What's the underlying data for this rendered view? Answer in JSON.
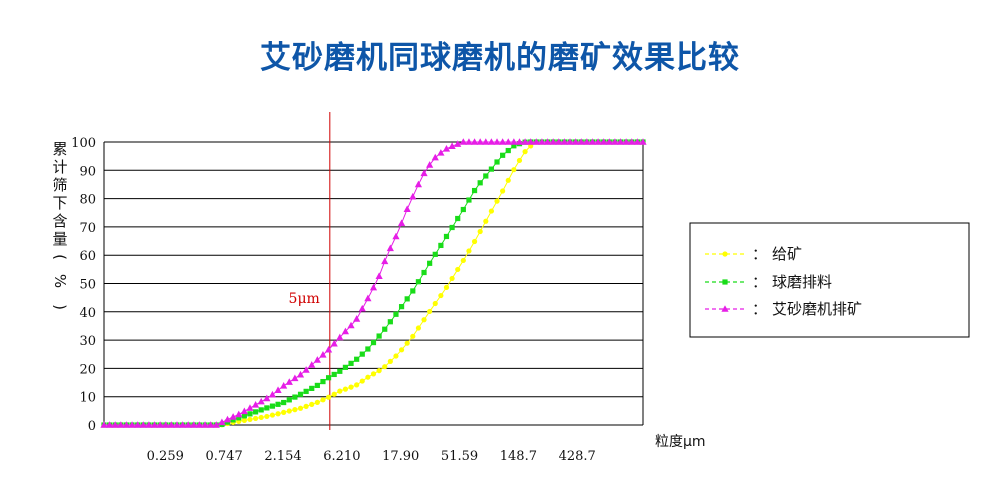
{
  "title": "艾砂磨机同球磨机的磨矿效果比较",
  "chart_data": {
    "type": "line",
    "title": "艾砂磨机同球磨机的磨矿效果比较",
    "ylabel_chars": [
      "累",
      "计",
      "筛",
      "下",
      "含",
      "量",
      "(",
      "%",
      ")"
    ],
    "xlabel": "粒度μm",
    "ylim": [
      0,
      100
    ],
    "yticks": [
      0,
      10,
      20,
      30,
      40,
      50,
      60,
      70,
      80,
      90,
      100
    ],
    "xlim": [
      0.086,
      1400
    ],
    "xscale": "log",
    "xtick_labels": [
      "0.259",
      "0.747",
      "2.154",
      "6.210",
      "17.90",
      "51.59",
      "148.7",
      "428.7"
    ],
    "xtick_values": [
      0.259,
      0.747,
      2.154,
      6.21,
      17.9,
      51.59,
      148.7,
      428.7
    ],
    "grid": "horizontal",
    "legend_position": "right",
    "annotations": [
      {
        "text": "5μm",
        "x": 5
      }
    ],
    "series": [
      {
        "name": "给矿",
        "color": "#ffff00",
        "marker": "circle",
        "points": [
          [
            0.086,
            0
          ],
          [
            0.12,
            0
          ],
          [
            0.18,
            0
          ],
          [
            0.25,
            0
          ],
          [
            0.35,
            0
          ],
          [
            0.5,
            0
          ],
          [
            0.7,
            0
          ],
          [
            0.9,
            1
          ],
          [
            1.2,
            2
          ],
          [
            1.6,
            3
          ],
          [
            2.2,
            4.5
          ],
          [
            3,
            6
          ],
          [
            4,
            8
          ],
          [
            5,
            10
          ],
          [
            6,
            12
          ],
          [
            8,
            14
          ],
          [
            10,
            17
          ],
          [
            13,
            20
          ],
          [
            17,
            25
          ],
          [
            22,
            31
          ],
          [
            30,
            40
          ],
          [
            40,
            48
          ],
          [
            55,
            58
          ],
          [
            70,
            66
          ],
          [
            90,
            75
          ],
          [
            110,
            82
          ],
          [
            140,
            91
          ],
          [
            170,
            97
          ],
          [
            200,
            100
          ],
          [
            300,
            100
          ],
          [
            500,
            100
          ],
          [
            800,
            100
          ],
          [
            1100,
            100
          ],
          [
            1400,
            100
          ]
        ]
      },
      {
        "name": "球磨排料",
        "color": "#19dc19",
        "marker": "square",
        "points": [
          [
            0.086,
            0
          ],
          [
            0.12,
            0
          ],
          [
            0.18,
            0
          ],
          [
            0.25,
            0
          ],
          [
            0.35,
            0
          ],
          [
            0.5,
            0
          ],
          [
            0.7,
            0
          ],
          [
            0.9,
            2
          ],
          [
            1.2,
            4
          ],
          [
            1.6,
            6
          ],
          [
            2.2,
            8
          ],
          [
            3,
            11
          ],
          [
            4,
            14
          ],
          [
            5,
            17
          ],
          [
            6,
            19
          ],
          [
            8,
            23
          ],
          [
            10,
            27
          ],
          [
            13,
            33
          ],
          [
            17,
            40
          ],
          [
            22,
            47
          ],
          [
            30,
            57
          ],
          [
            40,
            66
          ],
          [
            55,
            76
          ],
          [
            70,
            84
          ],
          [
            90,
            90
          ],
          [
            110,
            95
          ],
          [
            140,
            99
          ],
          [
            170,
            100
          ],
          [
            200,
            100
          ],
          [
            300,
            100
          ],
          [
            500,
            100
          ],
          [
            800,
            100
          ],
          [
            1100,
            100
          ],
          [
            1400,
            100
          ]
        ]
      },
      {
        "name": "艾砂磨机排矿",
        "color": "#e61ee6",
        "marker": "triangle",
        "points": [
          [
            0.086,
            0
          ],
          [
            0.12,
            0
          ],
          [
            0.18,
            0
          ],
          [
            0.25,
            0
          ],
          [
            0.35,
            0
          ],
          [
            0.5,
            0
          ],
          [
            0.65,
            0
          ],
          [
            0.8,
            2
          ],
          [
            1,
            4
          ],
          [
            1.3,
            7
          ],
          [
            1.7,
            10
          ],
          [
            2.2,
            14
          ],
          [
            3,
            18
          ],
          [
            4,
            23
          ],
          [
            5,
            27
          ],
          [
            6,
            31
          ],
          [
            8,
            37
          ],
          [
            10,
            45
          ],
          [
            12,
            52
          ],
          [
            14,
            60
          ],
          [
            17,
            68
          ],
          [
            20,
            76
          ],
          [
            24,
            84
          ],
          [
            28,
            90
          ],
          [
            34,
            95
          ],
          [
            42,
            98
          ],
          [
            55,
            100
          ],
          [
            70,
            100
          ],
          [
            100,
            100
          ],
          [
            200,
            100
          ],
          [
            400,
            100
          ],
          [
            800,
            100
          ],
          [
            1400,
            100
          ]
        ]
      }
    ]
  }
}
